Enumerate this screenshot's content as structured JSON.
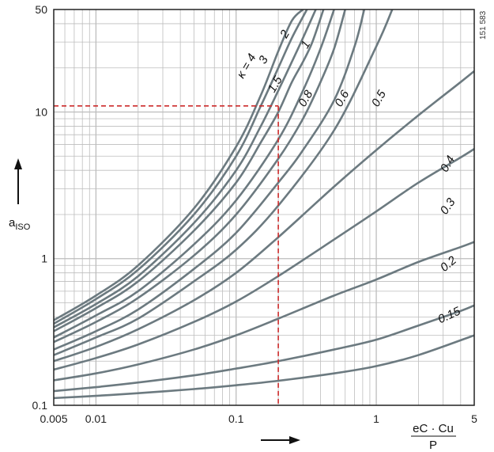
{
  "figure_id": "151 583",
  "chart_data": {
    "type": "line",
    "title": "",
    "xlabel": "e_C · C_u / P",
    "xlabel_numerator": "eC · Cu",
    "xlabel_denominator": "P",
    "ylabel": "aISO",
    "ylabel_main": "a",
    "ylabel_sub": "ISO",
    "xscale": "log",
    "yscale": "log",
    "xlim": [
      0.005,
      5
    ],
    "ylim": [
      0.1,
      50
    ],
    "grid": true,
    "x_ticks": [
      {
        "value": 0.005,
        "label": "0.005"
      },
      {
        "value": 0.01,
        "label": "0.01"
      },
      {
        "value": 0.1,
        "label": "0.1"
      },
      {
        "value": 1,
        "label": "1"
      },
      {
        "value": 5,
        "label": "5"
      }
    ],
    "y_ticks": [
      {
        "value": 0.1,
        "label": "0.1"
      },
      {
        "value": 1,
        "label": "1"
      },
      {
        "value": 10,
        "label": "10"
      },
      {
        "value": 50,
        "label": "50"
      }
    ],
    "line_color": "#6c7a80",
    "grid_color": "#bdbdbd",
    "reference_color": "#cc2a2a",
    "series": [
      {
        "name": "κ = 4",
        "label": "κ = 4",
        "label_at": [
          0.125,
          20
        ],
        "label_angle": -60,
        "x": [
          0.005,
          0.01,
          0.02,
          0.05,
          0.1,
          0.15,
          0.2,
          0.25,
          0.3
        ],
        "y": [
          0.38,
          0.56,
          0.9,
          2.2,
          5.8,
          13,
          26,
          42,
          50
        ]
      },
      {
        "name": "3",
        "label": "3",
        "label_at": [
          0.165,
          22
        ],
        "label_angle": -60,
        "x": [
          0.005,
          0.01,
          0.02,
          0.05,
          0.1,
          0.15,
          0.2,
          0.25,
          0.32
        ],
        "y": [
          0.36,
          0.53,
          0.84,
          2.0,
          5.0,
          11,
          20,
          32,
          50
        ]
      },
      {
        "name": "2",
        "label": "2",
        "label_at": [
          0.235,
          33
        ],
        "label_angle": -60,
        "x": [
          0.005,
          0.01,
          0.02,
          0.05,
          0.1,
          0.15,
          0.2,
          0.25,
          0.3,
          0.37
        ],
        "y": [
          0.34,
          0.49,
          0.76,
          1.75,
          4.0,
          8.0,
          14,
          22,
          32,
          50
        ]
      },
      {
        "name": "1.5",
        "label": "1.5",
        "label_at": [
          0.2,
          15
        ],
        "label_angle": -60,
        "x": [
          0.005,
          0.01,
          0.02,
          0.05,
          0.1,
          0.15,
          0.2,
          0.25,
          0.3,
          0.35,
          0.42
        ],
        "y": [
          0.32,
          0.46,
          0.7,
          1.55,
          3.3,
          6.2,
          10,
          16,
          22,
          30,
          50
        ]
      },
      {
        "name": "1",
        "label": "1",
        "label_at": [
          0.33,
          28
        ],
        "label_angle": -60,
        "x": [
          0.005,
          0.01,
          0.02,
          0.05,
          0.1,
          0.2,
          0.3,
          0.4,
          0.5
        ],
        "y": [
          0.29,
          0.41,
          0.6,
          1.25,
          2.5,
          6.5,
          14,
          27,
          50
        ]
      },
      {
        "name": "0.8",
        "label": "0.8",
        "label_at": [
          0.33,
          12
        ],
        "label_angle": -60,
        "x": [
          0.005,
          0.01,
          0.02,
          0.05,
          0.1,
          0.2,
          0.3,
          0.4,
          0.5,
          0.6
        ],
        "y": [
          0.27,
          0.37,
          0.54,
          1.05,
          2.0,
          4.8,
          9.0,
          16,
          27,
          50
        ]
      },
      {
        "name": "0.6",
        "label": "0.6",
        "label_at": [
          0.6,
          12
        ],
        "label_angle": -60,
        "x": [
          0.005,
          0.01,
          0.02,
          0.05,
          0.1,
          0.2,
          0.3,
          0.5,
          0.7,
          0.82
        ],
        "y": [
          0.24,
          0.32,
          0.45,
          0.85,
          1.5,
          3.3,
          5.5,
          12,
          28,
          50
        ]
      },
      {
        "name": "0.5",
        "label": "0.5",
        "label_at": [
          1.1,
          12
        ],
        "label_angle": -60,
        "x": [
          0.005,
          0.01,
          0.02,
          0.05,
          0.1,
          0.2,
          0.5,
          1.0,
          1.3
        ],
        "y": [
          0.22,
          0.29,
          0.39,
          0.7,
          1.15,
          2.3,
          7.5,
          28,
          50
        ]
      },
      {
        "name": "0.4",
        "label": "0.4",
        "label_at": [
          3.4,
          4.3
        ],
        "label_angle": -60,
        "x": [
          0.005,
          0.01,
          0.02,
          0.05,
          0.1,
          0.2,
          0.5,
          1.0,
          2.0,
          4.0,
          5.0
        ],
        "y": [
          0.2,
          0.25,
          0.33,
          0.52,
          0.8,
          1.4,
          3.1,
          5.5,
          9.5,
          16,
          19
        ]
      },
      {
        "name": "0.3",
        "label": "0.3",
        "label_at": [
          3.4,
          2.2
        ],
        "label_angle": -55,
        "x": [
          0.005,
          0.01,
          0.02,
          0.05,
          0.1,
          0.2,
          0.5,
          1.0,
          2.0,
          4.0,
          5.0
        ],
        "y": [
          0.175,
          0.21,
          0.26,
          0.37,
          0.51,
          0.76,
          1.35,
          2.1,
          3.3,
          4.9,
          5.6
        ]
      },
      {
        "name": "0.2",
        "label": "0.2",
        "label_at": [
          3.4,
          0.88
        ],
        "label_angle": -40,
        "x": [
          0.005,
          0.01,
          0.02,
          0.05,
          0.1,
          0.2,
          0.5,
          1.0,
          2.0,
          4.0,
          5.0
        ],
        "y": [
          0.148,
          0.165,
          0.19,
          0.24,
          0.3,
          0.39,
          0.56,
          0.72,
          0.95,
          1.2,
          1.3
        ]
      },
      {
        "name": "0.15",
        "label": "0.15",
        "label_at": [
          3.4,
          0.39
        ],
        "label_angle": -25,
        "x": [
          0.005,
          0.01,
          0.02,
          0.05,
          0.1,
          0.2,
          0.5,
          1.0,
          2.0,
          4.0,
          5.0
        ],
        "y": [
          0.125,
          0.133,
          0.143,
          0.16,
          0.178,
          0.2,
          0.24,
          0.28,
          0.35,
          0.44,
          0.48
        ]
      },
      {
        "name": "",
        "label": "",
        "x": [
          0.005,
          0.01,
          0.02,
          0.05,
          0.1,
          0.2,
          0.5,
          1.0,
          2.0,
          5.0
        ],
        "y": [
          0.112,
          0.116,
          0.121,
          0.129,
          0.137,
          0.147,
          0.165,
          0.185,
          0.22,
          0.3
        ]
      }
    ],
    "reference": {
      "x": 0.2,
      "y": 11
    }
  }
}
